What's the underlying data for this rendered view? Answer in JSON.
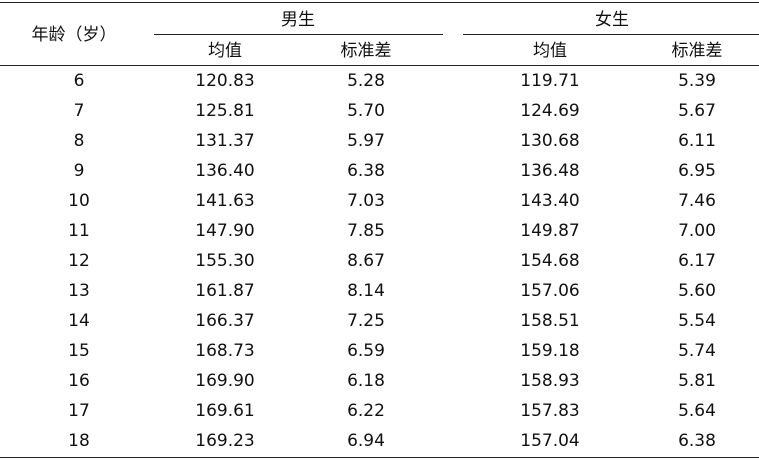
{
  "table": {
    "headers": {
      "age": "年龄（岁）",
      "male": "男生",
      "female": "女生",
      "male_mean": "均值",
      "male_sd": "标准差",
      "female_mean": "均值",
      "female_sd": "标准差"
    },
    "rows": [
      {
        "age": "6",
        "male_mean": "120.83",
        "male_sd": "5.28",
        "female_mean": "119.71",
        "female_sd": "5.39"
      },
      {
        "age": "7",
        "male_mean": "125.81",
        "male_sd": "5.70",
        "female_mean": "124.69",
        "female_sd": "5.67"
      },
      {
        "age": "8",
        "male_mean": "131.37",
        "male_sd": "5.97",
        "female_mean": "130.68",
        "female_sd": "6.11"
      },
      {
        "age": "9",
        "male_mean": "136.40",
        "male_sd": "6.38",
        "female_mean": "136.48",
        "female_sd": "6.95"
      },
      {
        "age": "10",
        "male_mean": "141.63",
        "male_sd": "7.03",
        "female_mean": "143.40",
        "female_sd": "7.46"
      },
      {
        "age": "11",
        "male_mean": "147.90",
        "male_sd": "7.85",
        "female_mean": "149.87",
        "female_sd": "7.00"
      },
      {
        "age": "12",
        "male_mean": "155.30",
        "male_sd": "8.67",
        "female_mean": "154.68",
        "female_sd": "6.17"
      },
      {
        "age": "13",
        "male_mean": "161.87",
        "male_sd": "8.14",
        "female_mean": "157.06",
        "female_sd": "5.60"
      },
      {
        "age": "14",
        "male_mean": "166.37",
        "male_sd": "7.25",
        "female_mean": "158.51",
        "female_sd": "5.54"
      },
      {
        "age": "15",
        "male_mean": "168.73",
        "male_sd": "6.59",
        "female_mean": "159.18",
        "female_sd": "5.74"
      },
      {
        "age": "16",
        "male_mean": "169.90",
        "male_sd": "6.18",
        "female_mean": "158.93",
        "female_sd": "5.81"
      },
      {
        "age": "17",
        "male_mean": "169.61",
        "male_sd": "6.22",
        "female_mean": "157.83",
        "female_sd": "5.64"
      },
      {
        "age": "18",
        "male_mean": "169.23",
        "male_sd": "6.94",
        "female_mean": "157.04",
        "female_sd": "6.38"
      }
    ]
  }
}
